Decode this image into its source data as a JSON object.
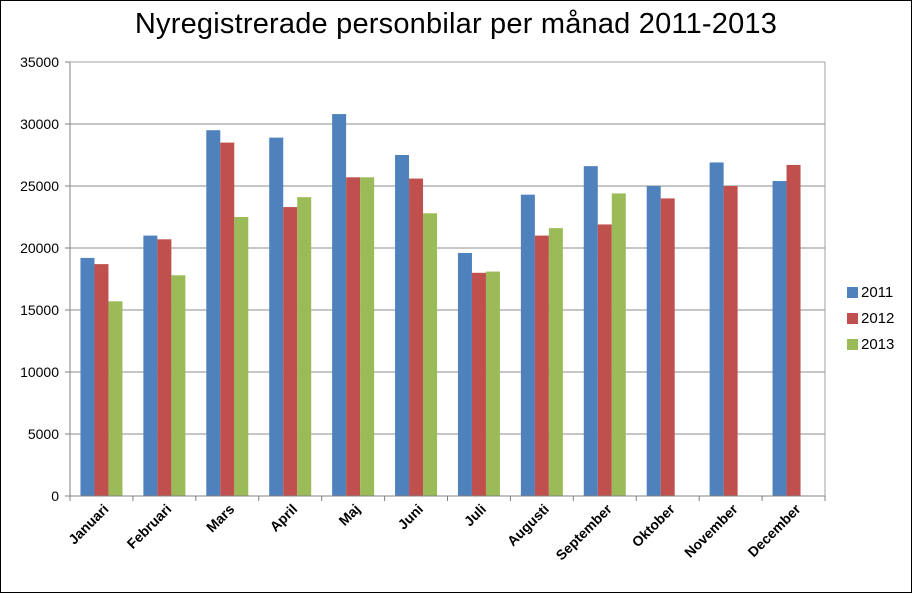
{
  "chart_data": {
    "type": "bar",
    "title": "Nyregistrerade personbilar per månad 2011-2013",
    "xlabel": "",
    "ylabel": "",
    "ylim": [
      0,
      35000
    ],
    "yticks": [
      0,
      5000,
      10000,
      15000,
      20000,
      25000,
      30000,
      35000
    ],
    "grid": true,
    "legend_position": "right",
    "categories": [
      "Januari",
      "Februari",
      "Mars",
      "April",
      "Maj",
      "Juni",
      "Juli",
      "Augusti",
      "September",
      "Oktober",
      "November",
      "December"
    ],
    "series": [
      {
        "name": "2011",
        "color": "#4F81BD",
        "values": [
          19200,
          21000,
          29500,
          28900,
          30800,
          27500,
          19600,
          24300,
          26600,
          25000,
          26900,
          25400
        ]
      },
      {
        "name": "2012",
        "color": "#C0504D",
        "values": [
          18700,
          20700,
          28500,
          23300,
          25700,
          25600,
          18000,
          21000,
          21900,
          24000,
          25000,
          26700
        ]
      },
      {
        "name": "2013",
        "color": "#9BBB59",
        "values": [
          15700,
          17800,
          22500,
          24100,
          25700,
          22800,
          18100,
          21600,
          24400,
          null,
          null,
          null
        ]
      }
    ]
  }
}
